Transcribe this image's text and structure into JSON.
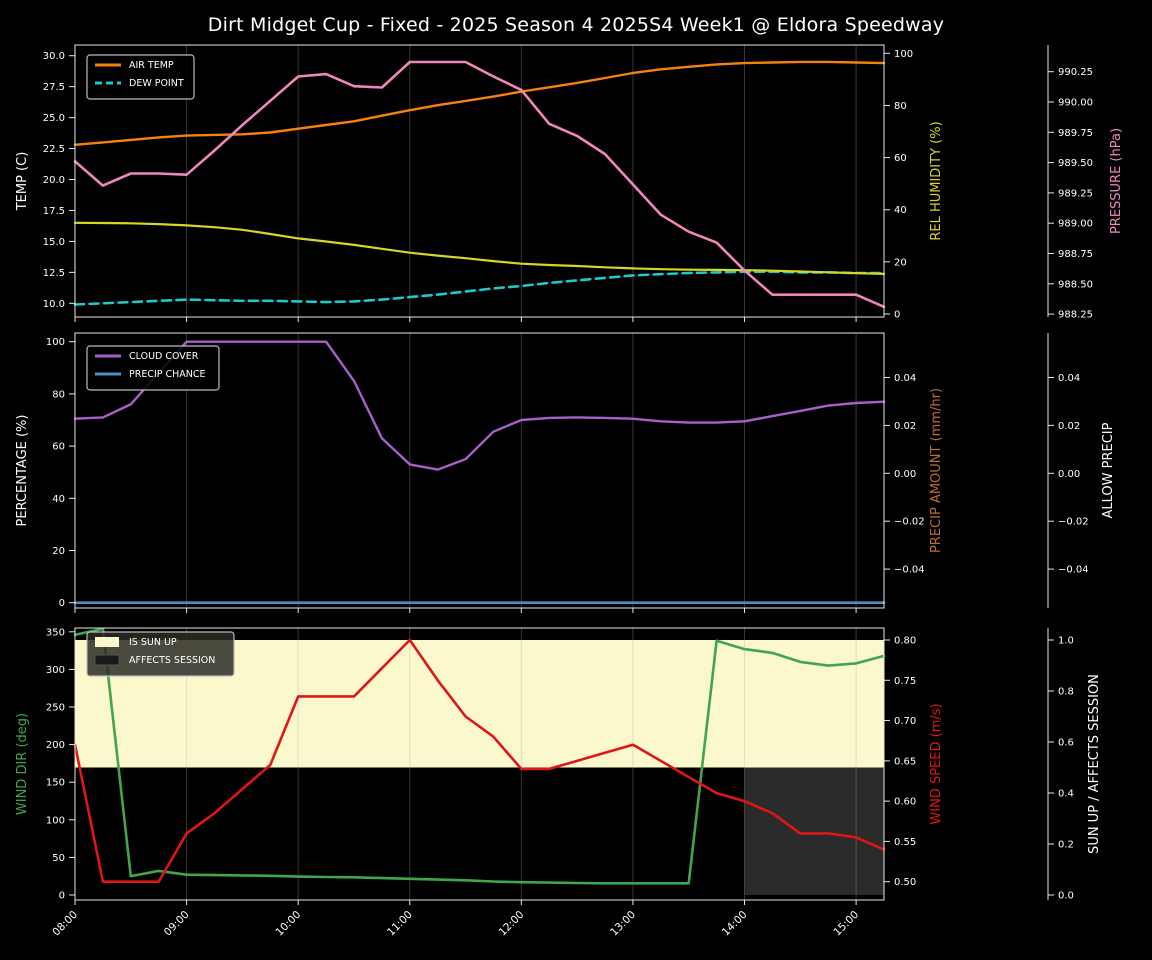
{
  "title": "Dirt Midget Cup - Fixed - 2025 Season 4 2025S4 Week1 @ Eldora Speedway",
  "chart_data": {
    "type": "line",
    "x_times": [
      "08:00",
      "08:15",
      "08:30",
      "08:45",
      "09:00",
      "09:15",
      "09:30",
      "09:45",
      "10:00",
      "10:15",
      "10:30",
      "10:45",
      "11:00",
      "11:15",
      "11:30",
      "11:45",
      "12:00",
      "12:15",
      "12:30",
      "12:45",
      "13:00",
      "13:15",
      "13:30",
      "13:45",
      "14:00",
      "14:15",
      "14:30",
      "14:45",
      "15:00",
      "15:15"
    ],
    "xtick_labels": [
      "08:00",
      "09:00",
      "10:00",
      "11:00",
      "12:00",
      "13:00",
      "14:00",
      "15:00"
    ],
    "grid": "vertical-hour-lines",
    "legend_position": "upper-left",
    "panels": [
      {
        "id": "temperature",
        "ylabel_left": {
          "text": "TEMP (C)",
          "color": "#ffffff"
        },
        "yticks_left": {
          "axis": "temp",
          "labels": [
            "30.0",
            "27.5",
            "25.0",
            "22.5",
            "20.0",
            "17.5",
            "15.0",
            "12.5",
            "10.0"
          ],
          "values": [
            30,
            27.5,
            25,
            22.5,
            20,
            17.5,
            15,
            12.5,
            10
          ]
        },
        "ylabel_right1": {
          "text": "REL HUMIDITY (%)",
          "color": "#d6d626"
        },
        "yticks_right1": {
          "axis": "humidity",
          "labels": [
            "100",
            "80",
            "60",
            "40",
            "20",
            "0"
          ],
          "values": [
            100,
            80,
            60,
            40,
            20,
            0
          ]
        },
        "ylabel_right2": {
          "text": "PRESSURE (hPa)",
          "color": "#ef87bb"
        },
        "yticks_right2": {
          "axis": "pressure",
          "labels": [
            "990.25",
            "990.00",
            "989.75",
            "989.50",
            "989.25",
            "989.00",
            "988.75",
            "988.50",
            "988.25"
          ],
          "values": [
            990.25,
            990.0,
            989.75,
            989.5,
            989.25,
            989.0,
            988.75,
            988.5,
            988.25
          ]
        },
        "series": [
          {
            "name": "AIR TEMP",
            "axis": "temp",
            "color": "#f5820d",
            "dash": false,
            "width": 2.4,
            "values": [
              22.8,
              23.0,
              23.2,
              23.4,
              23.55,
              23.6,
              23.65,
              23.8,
              24.1,
              24.4,
              24.7,
              25.15,
              25.6,
              26.0,
              26.35,
              26.7,
              27.1,
              27.45,
              27.8,
              28.2,
              28.6,
              28.9,
              29.1,
              29.3,
              29.4,
              29.45,
              29.5,
              29.5,
              29.45,
              29.4
            ]
          },
          {
            "name": "DEW POINT",
            "axis": "temp",
            "color": "#1ec9c9",
            "dash": true,
            "width": 2.6,
            "values": [
              9.9,
              10.0,
              10.1,
              10.2,
              10.3,
              10.25,
              10.2,
              10.2,
              10.15,
              10.1,
              10.15,
              10.3,
              10.5,
              10.7,
              10.95,
              11.2,
              11.4,
              11.65,
              11.85,
              12.05,
              12.25,
              12.35,
              12.45,
              12.5,
              12.55,
              12.55,
              12.5,
              12.5,
              12.45,
              12.45
            ]
          },
          {
            "name": "REL HUMIDITY",
            "axis": "humidity",
            "color": "#d6d626",
            "dash": false,
            "width": 2.2,
            "values": [
              35,
              34.9,
              34.8,
              34.5,
              34,
              33.3,
              32.3,
              30.7,
              29,
              27.8,
              26.5,
              25,
              23.5,
              22.4,
              21.4,
              20.3,
              19.3,
              18.8,
              18.4,
              17.9,
              17.5,
              17.2,
              17,
              16.9,
              16.8,
              16.6,
              16.3,
              16,
              15.7,
              15.4
            ]
          },
          {
            "name": "PRESSURE",
            "axis": "pressure",
            "color": "#ef87bb",
            "dash": false,
            "width": 2.6,
            "values": [
              989.51,
              989.31,
              989.41,
              989.41,
              989.4,
              989.6,
              989.81,
              990.01,
              990.21,
              990.23,
              990.13,
              990.12,
              990.33,
              990.33,
              990.33,
              990.21,
              990.1,
              989.82,
              989.72,
              989.57,
              989.32,
              989.07,
              988.93,
              988.84,
              988.61,
              988.41,
              988.41,
              988.41,
              988.41,
              988.31
            ]
          }
        ],
        "legend": [
          {
            "label": "AIR TEMP",
            "swatch": "line",
            "color": "#f5820d"
          },
          {
            "label": "DEW POINT",
            "swatch": "dash",
            "color": "#1ec9c9"
          }
        ]
      },
      {
        "id": "precipitation",
        "ylabel_left": {
          "text": "PERCENTAGE (%)",
          "color": "#ffffff"
        },
        "yticks_left": {
          "axis": "pct",
          "labels": [
            "100",
            "80",
            "60",
            "40",
            "20",
            "0"
          ],
          "values": [
            100,
            80,
            60,
            40,
            20,
            0
          ]
        },
        "ylabel_right1": {
          "text": "PRECIP AMOUNT (mm/hr)",
          "color": "#bf6b33"
        },
        "yticks_right1": {
          "axis": "amt",
          "labels": [
            "0.04",
            "0.02",
            "0.00",
            "−0.02",
            "−0.04"
          ],
          "values": [
            0.04,
            0.02,
            0.0,
            -0.02,
            -0.04
          ]
        },
        "ylabel_right2": {
          "text": "ALLOW PRECIP",
          "color": "#ffffff"
        },
        "yticks_right2": {
          "axis": "amt",
          "labels": [
            "0.04",
            "0.02",
            "0.00",
            "−0.02",
            "−0.04"
          ],
          "values": [
            0.04,
            0.02,
            0.0,
            -0.02,
            -0.04
          ]
        },
        "series": [
          {
            "name": "CLOUD COVER",
            "axis": "pct",
            "color": "#a661c9",
            "dash": false,
            "width": 2.4,
            "values": [
              70.5,
              71,
              76,
              88,
              100,
              100,
              100,
              100,
              100,
              100,
              85,
              63,
              53,
              51,
              55,
              65.5,
              70,
              70.8,
              71,
              70.8,
              70.5,
              69.5,
              69,
              69,
              69.5,
              71.5,
              73.5,
              75.5,
              76.5,
              77
            ]
          },
          {
            "name": "PRECIP CHANCE",
            "axis": "pct",
            "color": "#4d8ec9",
            "dash": false,
            "width": 2.6,
            "values": [
              0,
              0,
              0,
              0,
              0,
              0,
              0,
              0,
              0,
              0,
              0,
              0,
              0,
              0,
              0,
              0,
              0,
              0,
              0,
              0,
              0,
              0,
              0,
              0,
              0,
              0,
              0,
              0,
              0,
              0
            ]
          }
        ],
        "legend": [
          {
            "label": "CLOUD COVER",
            "swatch": "line",
            "color": "#a661c9"
          },
          {
            "label": "PRECIP CHANCE",
            "swatch": "line",
            "color": "#4d8ec9"
          }
        ]
      },
      {
        "id": "wind-sun",
        "ylabel_left": {
          "text": "WIND DIR (deg)",
          "color": "#3fa64c"
        },
        "yticks_left": {
          "axis": "dir",
          "labels": [
            "350",
            "300",
            "250",
            "200",
            "150",
            "100",
            "50",
            "0"
          ],
          "values": [
            350,
            300,
            250,
            200,
            150,
            100,
            50,
            0
          ]
        },
        "ylabel_right1": {
          "text": "WIND SPEED (m/s)",
          "color": "#df1616"
        },
        "yticks_right1": {
          "axis": "spd",
          "labels": [
            "0.80",
            "0.75",
            "0.70",
            "0.65",
            "0.60",
            "0.55",
            "0.50"
          ],
          "values": [
            0.8,
            0.75,
            0.7,
            0.65,
            0.6,
            0.55,
            0.5
          ]
        },
        "ylabel_right2": {
          "text": "SUN UP / AFFECTS SESSION",
          "color": "#ffffff"
        },
        "yticks_right2": {
          "axis": "sun",
          "labels": [
            "1.0",
            "0.8",
            "0.6",
            "0.4",
            "0.2",
            "0.0"
          ],
          "values": [
            1.0,
            0.8,
            0.6,
            0.4,
            0.2,
            0.0
          ]
        },
        "bands": [
          {
            "name": "is-sun-up-band",
            "label": "IS SUN UP",
            "axis": "sun",
            "x_from": "08:00",
            "x_to": "15:15",
            "v_from": 0.5,
            "v_to": 1.0,
            "color": "#fbf8cd"
          },
          {
            "name": "affects-session-band",
            "label": "AFFECTS SESSION",
            "axis": "sun",
            "x_from": "14:00",
            "x_to": "15:15",
            "v_from": 0.0,
            "v_to": 0.5,
            "color": "#2b2b2b"
          }
        ],
        "series": [
          {
            "name": "WIND DIR",
            "axis": "dir",
            "color": "#3fa64c",
            "dash": false,
            "width": 2.6,
            "values": [
              346,
              354,
              25,
              32,
              27,
              26.5,
              26,
              25.5,
              24.5,
              24,
              23.5,
              22.5,
              21.5,
              20.5,
              19.5,
              18,
              17,
              16.5,
              16,
              15.5,
              15.5,
              15.5,
              15.5,
              338,
              327,
              322,
              310,
              305,
              308,
              318
            ]
          },
          {
            "name": "WIND SPEED",
            "axis": "spd",
            "color": "#df1616",
            "dash": false,
            "width": 2.6,
            "values": [
              0.67,
              0.5,
              0.5,
              0.5,
              0.56,
              0.585,
              0.615,
              0.645,
              0.73,
              0.73,
              0.73,
              0.765,
              0.8,
              0.75,
              0.705,
              0.68,
              0.64,
              0.64,
              0.65,
              0.66,
              0.67,
              0.65,
              0.63,
              0.61,
              0.6,
              0.585,
              0.56,
              0.56,
              0.555,
              0.54
            ]
          },
          {
            "name": "SUN UP",
            "axis": "sun",
            "color": "#fbf8cd",
            "dash": false,
            "width": 0,
            "hidden": true,
            "values": [
              1,
              1,
              1,
              1,
              1,
              1,
              1,
              1,
              1,
              1,
              1,
              1,
              1,
              1,
              1,
              1,
              1,
              1,
              1,
              1,
              1,
              1,
              1,
              1,
              1,
              1,
              1,
              1,
              1,
              1
            ]
          },
          {
            "name": "AFFECTS SESSION",
            "axis": "sun",
            "color": "#2b2b2b",
            "dash": false,
            "width": 0,
            "hidden": true,
            "values": [
              0,
              0,
              0,
              0,
              0,
              0,
              0,
              0,
              0,
              0,
              0,
              0,
              0,
              0,
              0,
              0,
              0,
              0,
              0,
              0,
              0,
              0,
              0,
              0,
              1,
              1,
              1,
              1,
              1,
              1
            ]
          }
        ],
        "legend": [
          {
            "label": "IS SUN UP",
            "swatch": "patch",
            "color": "#fbf8cd"
          },
          {
            "label": "AFFECTS SESSION",
            "swatch": "patch",
            "color": "#191919"
          }
        ]
      }
    ],
    "colors": {
      "background": "#000000",
      "spine": "#e8e8e8",
      "tick_text": "#ffffff",
      "grid": "rgba(170,170,170,0.32)"
    }
  }
}
